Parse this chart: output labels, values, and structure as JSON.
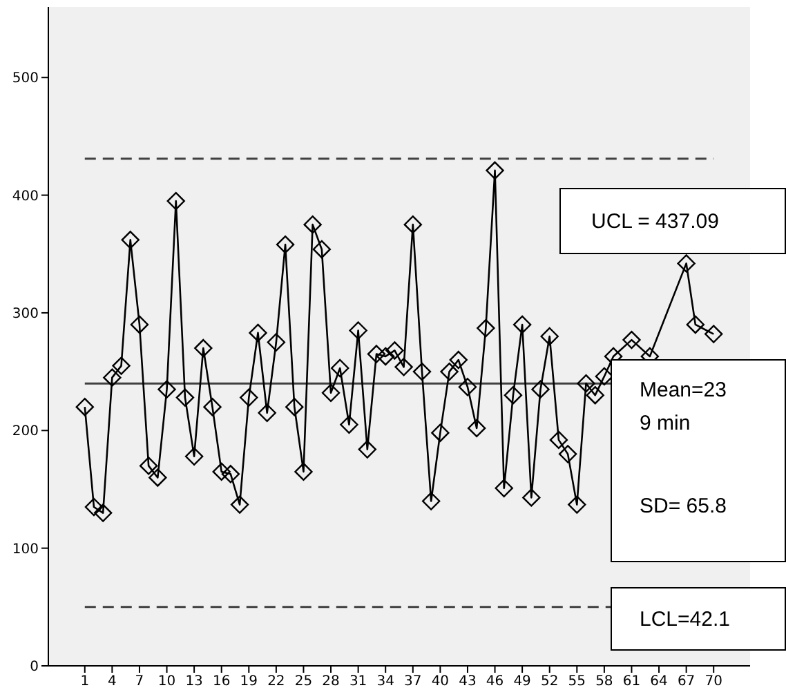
{
  "chart_data": {
    "type": "line",
    "x": [
      1,
      2,
      3,
      4,
      5,
      6,
      7,
      8,
      9,
      10,
      11,
      12,
      13,
      14,
      15,
      16,
      17,
      18,
      19,
      20,
      21,
      22,
      23,
      24,
      25,
      26,
      27,
      28,
      29,
      30,
      31,
      32,
      33,
      34,
      35,
      36,
      37,
      38,
      39,
      40,
      41,
      42,
      43,
      44,
      45,
      46,
      47,
      48,
      49,
      50,
      51,
      52,
      53,
      54,
      55,
      56,
      57,
      58,
      59,
      60,
      61,
      62,
      63,
      64,
      65,
      66,
      67,
      68,
      69,
      70
    ],
    "series": [
      {
        "color": "#000000",
        "values": [
          220,
          135,
          130,
          245,
          255,
          362,
          290,
          170,
          160,
          235,
          395,
          228,
          178,
          270,
          220,
          165,
          163,
          137,
          228,
          283,
          215,
          275,
          358,
          220,
          165,
          375,
          354,
          232,
          253,
          205,
          285,
          184,
          265,
          263,
          268,
          254,
          375,
          250,
          140,
          198,
          250,
          260,
          237,
          202,
          287,
          421,
          151,
          230,
          290,
          143,
          235,
          280,
          192,
          180,
          137,
          240,
          230,
          246,
          263,
          null,
          277,
          null,
          263,
          null,
          null,
          null,
          342,
          290,
          null,
          282
        ]
      }
    ],
    "xlim": [
      -3,
      74
    ],
    "xticks": [
      1,
      4,
      7,
      10,
      13,
      16,
      19,
      22,
      25,
      28,
      31,
      34,
      37,
      40,
      43,
      46,
      49,
      52,
      55,
      58,
      61,
      64,
      67,
      70
    ],
    "ylim": [
      0,
      560
    ],
    "yticks": [
      0,
      100,
      200,
      300,
      400,
      500
    ],
    "marker": "diamond",
    "line_style": "solid",
    "grid": false,
    "ref_lines": [
      {
        "axis": "y",
        "value": 431,
        "line_style": "dashed",
        "color": "#404040"
      },
      {
        "axis": "y",
        "value": 240,
        "line_style": "solid",
        "color": "#404040"
      },
      {
        "axis": "y",
        "value": 50,
        "line_style": "dashed",
        "color": "#404040"
      }
    ],
    "annotations": [
      "UCL = 437.09",
      "Mean=239 min",
      "SD= 65.8",
      "LCL=42.1"
    ]
  }
}
